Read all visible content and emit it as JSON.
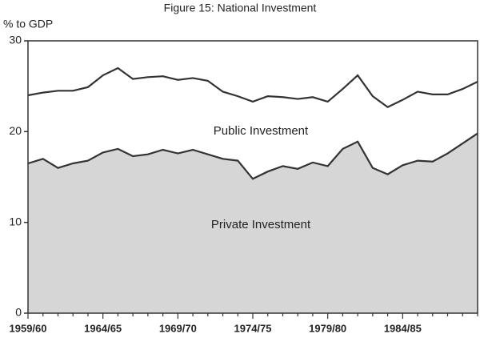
{
  "chart_data": {
    "type": "stacked_area",
    "title": "Figure 15: National Investment",
    "y_label": "% to GDP",
    "categories": [
      "1959/60",
      null,
      null,
      null,
      null,
      "1964/65",
      null,
      null,
      null,
      null,
      "1969/70",
      null,
      null,
      null,
      null,
      "1974/75",
      null,
      null,
      null,
      null,
      "1979/80",
      null,
      null,
      null,
      null,
      "1984/85",
      null,
      null,
      null,
      null,
      null
    ],
    "series": [
      {
        "name": "Private Investment",
        "color": "#d6d6d6",
        "values": [
          16.5,
          17.0,
          16.0,
          16.5,
          16.8,
          17.7,
          18.1,
          17.3,
          17.5,
          18.0,
          17.6,
          18.0,
          17.5,
          17.0,
          16.8,
          14.8,
          15.6,
          16.2,
          15.9,
          16.6,
          16.2,
          18.1,
          18.9,
          16.0,
          15.3,
          16.3,
          16.8,
          16.7,
          17.6,
          18.7,
          19.8
        ]
      },
      {
        "name": "Public Investment",
        "color": "#ffffff",
        "values": [
          7.5,
          7.3,
          8.5,
          8.0,
          8.1,
          8.5,
          8.9,
          8.5,
          8.5,
          8.1,
          8.1,
          7.9,
          8.1,
          7.4,
          7.1,
          8.5,
          8.3,
          7.6,
          7.7,
          7.2,
          7.1,
          6.6,
          7.3,
          7.9,
          7.4,
          7.2,
          7.6,
          7.4,
          6.5,
          6.0,
          5.7
        ]
      }
    ],
    "ylim": [
      0,
      30
    ],
    "yticks": [
      0,
      10,
      20,
      30
    ]
  }
}
